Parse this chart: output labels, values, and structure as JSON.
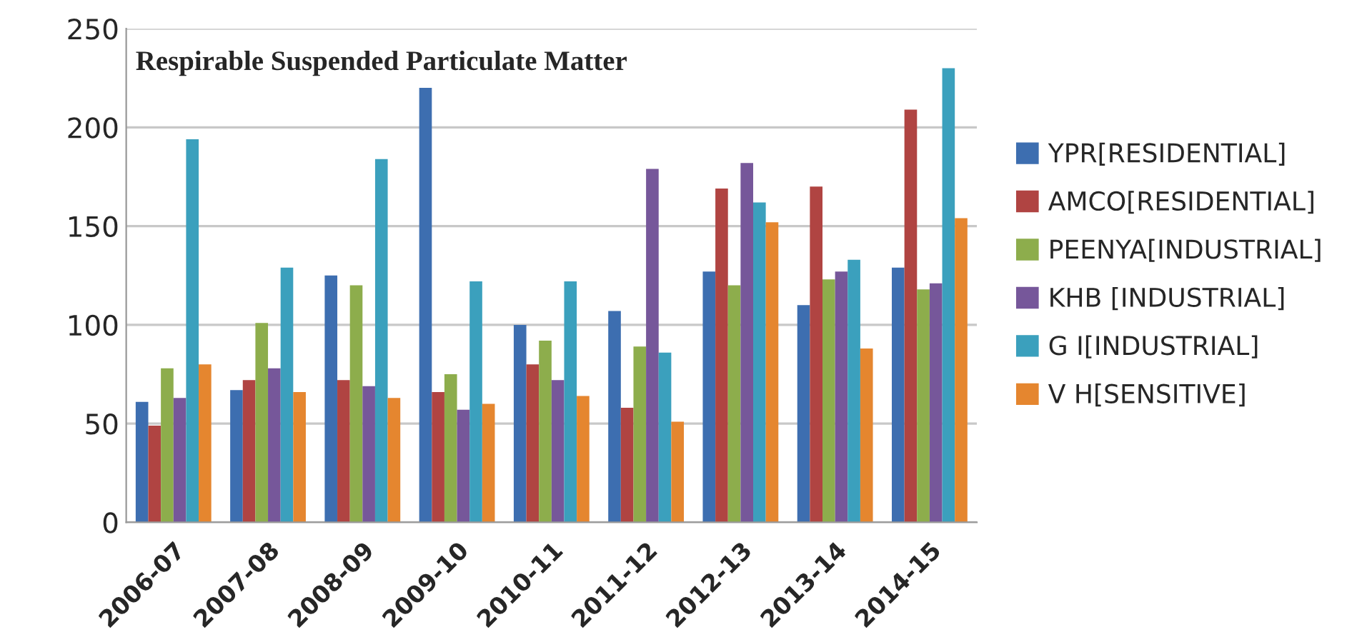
{
  "chart_data": {
    "type": "bar",
    "title": "Respirable Suspended Particulate Matter",
    "categories": [
      "2006-07",
      "2007-08",
      "2008-09",
      "2009-10",
      "2010-11",
      "2011-12",
      "2012-13",
      "2013-14",
      "2014-15"
    ],
    "series": [
      {
        "name": "YPR[RESIDENTIAL]",
        "color": "#3d6eb0",
        "values": [
          61,
          67,
          125,
          220,
          100,
          107,
          127,
          110,
          129
        ]
      },
      {
        "name": "AMCO[RESIDENTIAL]",
        "color": "#b04442",
        "values": [
          49,
          72,
          72,
          66,
          80,
          58,
          169,
          170,
          209
        ]
      },
      {
        "name": "PEENYA[INDUSTRIAL]",
        "color": "#8dad4c",
        "values": [
          78,
          101,
          120,
          75,
          92,
          89,
          120,
          123,
          118
        ]
      },
      {
        "name": "KHB [INDUSTRIAL]",
        "color": "#76579a",
        "values": [
          63,
          78,
          69,
          57,
          72,
          179,
          182,
          127,
          121
        ]
      },
      {
        "name": "G I[INDUSTRIAL]",
        "color": "#3ba0bd",
        "values": [
          194,
          129,
          184,
          122,
          122,
          86,
          162,
          133,
          230
        ]
      },
      {
        "name": "V H[SENSITIVE]",
        "color": "#e5862f",
        "values": [
          80,
          66,
          63,
          60,
          64,
          51,
          152,
          88,
          154
        ]
      }
    ],
    "ylim": [
      0,
      250
    ],
    "yticks": [
      0,
      50,
      100,
      150,
      200,
      250
    ],
    "grid": "y",
    "legend": "right"
  }
}
